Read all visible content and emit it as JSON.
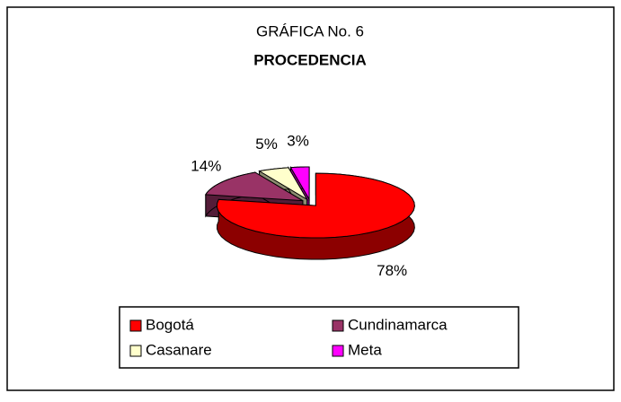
{
  "chart_data": {
    "type": "pie",
    "title": "GRÁFICA No. 6",
    "subtitle": "PROCEDENCIA",
    "categories": [
      "Bogotá",
      "Cundinamarca",
      "Casanare",
      "Meta"
    ],
    "values": [
      78,
      14,
      5,
      3
    ],
    "value_labels": [
      "78%",
      "14%",
      "5%",
      "3%"
    ],
    "colors": [
      "#ff0000",
      "#993366",
      "#ffffcc",
      "#ff00ff"
    ],
    "legend": "bottom"
  }
}
